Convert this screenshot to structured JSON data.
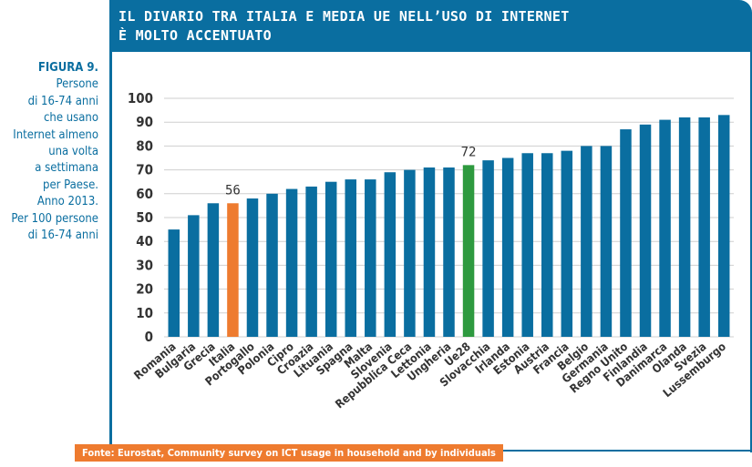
{
  "title": {
    "line1": "IL DIVARIO TRA ITALIA E MEDIA UE NELL’USO DI INTERNET",
    "line2": "È MOLTO ACCENTUATO"
  },
  "caption": {
    "figure": "FIGURA 9.",
    "lines": [
      "Persone",
      "di 16-74 anni",
      "che usano",
      "Internet almeno",
      "una volta",
      "a settimana",
      "per Paese.",
      "Anno 2013.",
      "Per 100 persone",
      "di 16-74 anni"
    ]
  },
  "source": "Fonte: Eurostat, Community survey on ICT usage in household and by individuals",
  "colors": {
    "title_bg": "#0a6ea0",
    "bar_default": "#0a6ea0",
    "bar_italy": "#ee7b2f",
    "bar_eu": "#2e9a3f",
    "grid": "#cfcfcf",
    "text": "#333333"
  },
  "chart_data": {
    "type": "bar",
    "categories": [
      "Romania",
      "Bulgaria",
      "Grecia",
      "Italia",
      "Portogallo",
      "Polonia",
      "Cipro",
      "Croazia",
      "Lituania",
      "Spagna",
      "Malta",
      "Slovenia",
      "Repubblica Ceca",
      "Lettonia",
      "Ungheria",
      "Ue28",
      "Slovacchia",
      "Irlanda",
      "Estonia",
      "Austria",
      "Francia",
      "Belgio",
      "Germania",
      "Regno Unito",
      "Finlandia",
      "Danimarca",
      "Olanda",
      "Svezia",
      "Lussemburgo"
    ],
    "values": [
      45,
      51,
      56,
      56,
      58,
      60,
      62,
      63,
      65,
      66,
      66,
      69,
      70,
      71,
      71,
      72,
      74,
      75,
      77,
      77,
      78,
      80,
      80,
      87,
      89,
      91,
      92,
      92,
      93
    ],
    "highlight": {
      "Italia": "bar_italy",
      "Ue28": "bar_eu"
    },
    "data_labels": [
      {
        "category": "Italia",
        "text": "56"
      },
      {
        "category": "Ue28",
        "text": "72"
      }
    ],
    "ylim": [
      0,
      100
    ],
    "yticks": [
      0,
      10,
      20,
      30,
      40,
      50,
      60,
      70,
      80,
      90,
      100
    ],
    "grid": true
  }
}
